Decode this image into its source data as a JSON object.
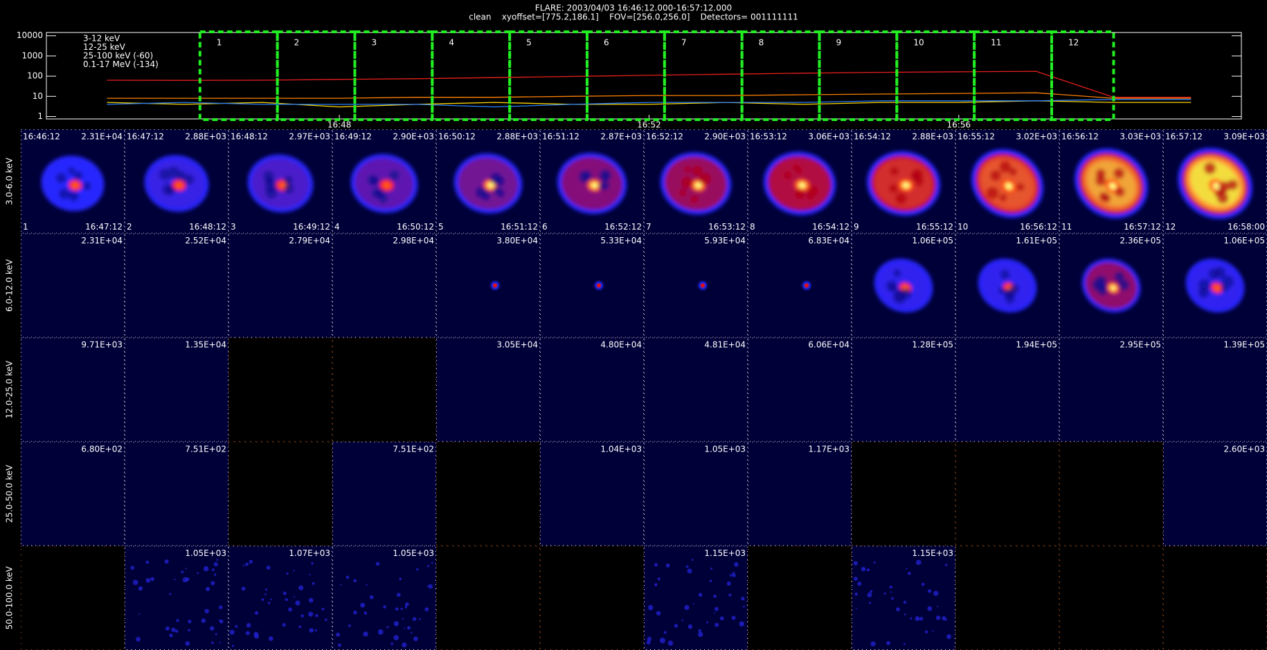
{
  "header": {
    "title": "FLARE: 2003/04/03 16:46:12.000-16:57:12.000",
    "subtitle": "clean    xyoffset=[775.2,186.1]    FOV=[256.0,256.0]    Detectors= 001111111"
  },
  "chart_data": {
    "type": "line",
    "log_y": true,
    "grid": false,
    "legend": "upper-left",
    "x": [
      "16:45",
      "16:46",
      "16:47",
      "16:48",
      "16:49",
      "16:50",
      "16:51",
      "16:52",
      "16:53",
      "16:54",
      "16:55",
      "16:56",
      "16:57",
      "16:58",
      "16:59"
    ],
    "xlim": [
      "16:44:13",
      "16:59:39"
    ],
    "xticks": [
      {
        "value": "16:48:00",
        "label": "16:48"
      },
      {
        "value": "16:52:00",
        "label": "16:52"
      },
      {
        "value": "16:56:00",
        "label": "16:56"
      }
    ],
    "ylim": [
      0.76,
      14500
    ],
    "yticks": [
      1,
      10,
      100,
      1000,
      10000
    ],
    "interval_color": "#22ee22",
    "series": [
      {
        "name": "3-12 keV",
        "color": "#e8201c",
        "values": [
          63,
          62,
          63,
          69,
          75,
          85,
          97,
          110,
          125,
          140,
          155,
          165,
          174,
          9,
          9
        ]
      },
      {
        "name": "12-25 keV",
        "color": "#ff8000",
        "values": [
          8,
          8,
          8,
          8,
          9,
          9,
          10,
          11,
          11,
          12,
          13,
          14,
          15,
          8,
          8
        ]
      },
      {
        "name": "25-100 keV (-60)",
        "color": "#ffd700",
        "values": [
          5,
          4,
          5,
          3,
          4,
          5,
          4,
          4,
          5,
          4,
          5,
          5,
          6,
          5,
          5
        ]
      },
      {
        "name": "0.1-17 MeV (-134)",
        "color": "#2a7fff",
        "values": [
          4,
          5,
          4,
          4,
          4,
          3,
          4,
          5,
          5,
          5,
          6,
          6,
          6,
          7,
          7
        ]
      }
    ]
  },
  "columns": [
    {
      "label": "1",
      "start": "16:46:12",
      "end": "16:47:12"
    },
    {
      "label": "2",
      "start": "16:47:12",
      "end": "16:48:12"
    },
    {
      "label": "3",
      "start": "16:48:12",
      "end": "16:49:12"
    },
    {
      "label": "4",
      "start": "16:49:12",
      "end": "16:50:12"
    },
    {
      "label": "5",
      "start": "16:50:12",
      "end": "16:51:12"
    },
    {
      "label": "6",
      "start": "16:51:12",
      "end": "16:52:12"
    },
    {
      "label": "7",
      "start": "16:52:12",
      "end": "16:53:12"
    },
    {
      "label": "8",
      "start": "16:53:12",
      "end": "16:54:12"
    },
    {
      "label": "9",
      "start": "16:54:12",
      "end": "16:55:12"
    },
    {
      "label": "10",
      "start": "16:55:12",
      "end": "16:56:12"
    },
    {
      "label": "11",
      "start": "16:56:12",
      "end": "16:57:12"
    },
    {
      "label": "12",
      "start": "16:57:12",
      "end": "16:58:00"
    }
  ],
  "rows": [
    {
      "label": "3.0-6.0 keV",
      "maxima": [
        "2.31E+04",
        "2.88E+03",
        "2.97E+03",
        "2.90E+03",
        "2.88E+03",
        "2.87E+03",
        "2.90E+03",
        "3.06E+03",
        "2.88E+03",
        "3.02E+03",
        "3.03E+03",
        "3.09E+03"
      ]
    },
    {
      "label": "6.0-12.0 keV",
      "maxima": [
        "2.31E+04",
        "2.52E+04",
        "2.79E+04",
        "2.98E+04",
        "3.80E+04",
        "5.33E+04",
        "5.93E+04",
        "6.83E+04",
        "1.06E+05",
        "1.61E+05",
        "2.36E+05",
        "1.06E+05"
      ]
    },
    {
      "label": "12.0-25.0 keV",
      "maxima": [
        "9.71E+03",
        "1.35E+04",
        null,
        null,
        "3.05E+04",
        "4.80E+04",
        "4.81E+04",
        "6.06E+04",
        "1.28E+05",
        "1.94E+05",
        "2.95E+05",
        "1.39E+05"
      ]
    },
    {
      "label": "25.0-50.0 keV",
      "maxima": [
        "6.80E+02",
        "7.51E+02",
        null,
        "7.51E+02",
        null,
        "1.04E+03",
        "1.05E+03",
        "1.17E+03",
        null,
        null,
        null,
        "2.60E+03"
      ]
    },
    {
      "label": "50.0-100.0 keV",
      "maxima": [
        null,
        "1.05E+03",
        "1.07E+03",
        "1.05E+03",
        null,
        null,
        "1.15E+03",
        null,
        "1.15E+03",
        null,
        null,
        null
      ]
    }
  ]
}
